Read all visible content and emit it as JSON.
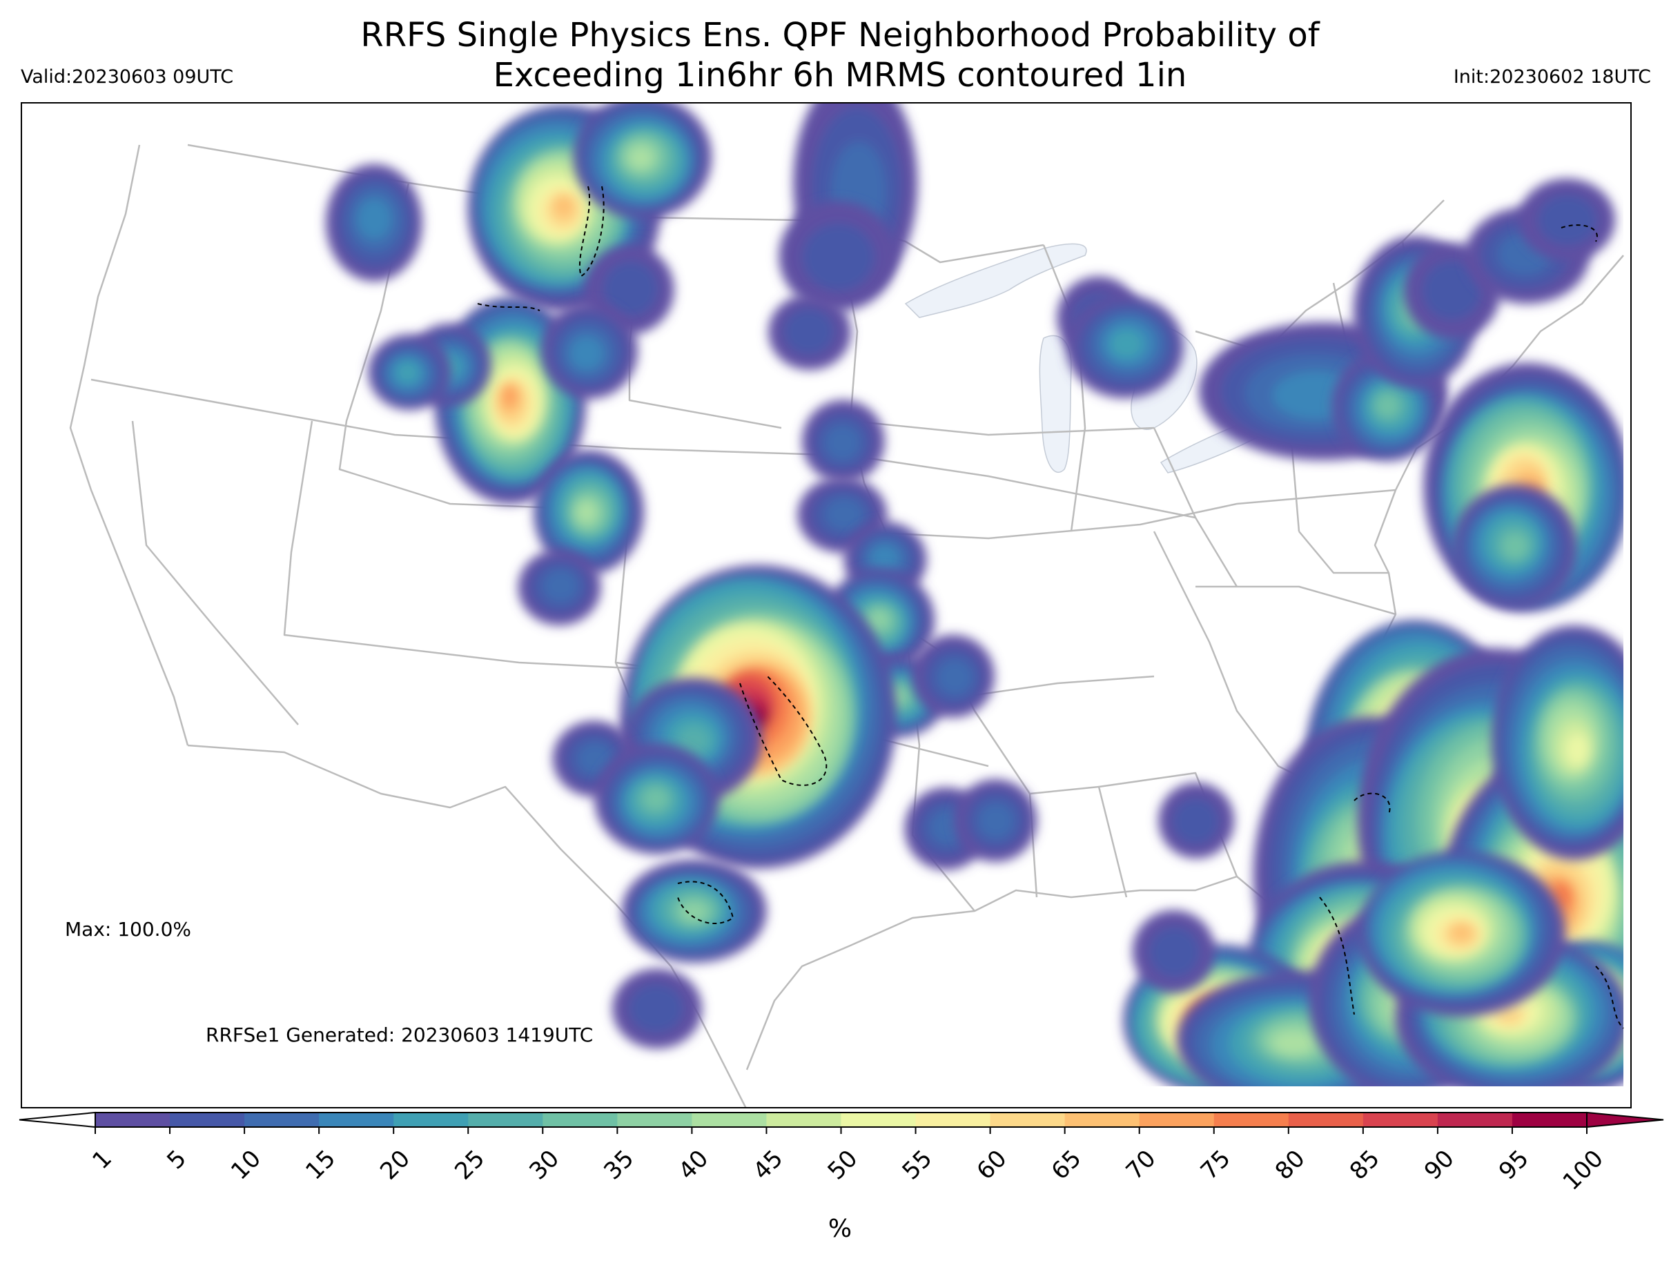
{
  "header": {
    "title_line1": "RRFS Single Physics Ens. QPF Neighborhood Probability of",
    "title_line2": "Exceeding 1in6hr 6h MRMS contoured 1in",
    "valid": "Valid:20230603 09UTC",
    "init": "Init:20230602 18UTC"
  },
  "annotations": {
    "max": "Max: 100.0%",
    "generated": "RRFSe1 Generated: 20230603 1419UTC"
  },
  "colorbar": {
    "levels": [
      1,
      5,
      10,
      15,
      20,
      25,
      30,
      35,
      40,
      45,
      50,
      55,
      60,
      65,
      70,
      75,
      80,
      85,
      90,
      95,
      100
    ],
    "tick_labels": [
      "1",
      "5",
      "10",
      "15",
      "20",
      "25",
      "30",
      "35",
      "40",
      "45",
      "50",
      "55",
      "60",
      "65",
      "70",
      "75",
      "80",
      "85",
      "90",
      "95",
      "100"
    ],
    "colors": [
      "#5e4fa2",
      "#4658a8",
      "#3f6cb0",
      "#3a86b9",
      "#3fa0b4",
      "#54aeab",
      "#6fc1a5",
      "#8ed1a4",
      "#ace0a2",
      "#cdeb9e",
      "#ebf7a5",
      "#f9f0a0",
      "#fdd98a",
      "#fdc173",
      "#fca25e",
      "#f67f4e",
      "#e9604a",
      "#d9434f",
      "#bf2750",
      "#9e0142"
    ],
    "units": "%"
  },
  "map": {
    "lake_color": "#edf2f9",
    "border_color": "#bbbbbb",
    "contour_color": "#000000"
  }
}
